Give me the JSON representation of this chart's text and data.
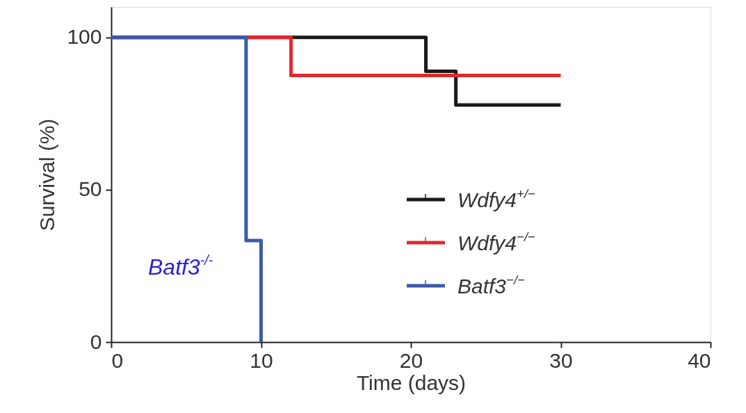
{
  "chart_data": {
    "type": "step",
    "xlabel": "Time (days)",
    "ylabel": "Survival (%)",
    "xlim": [
      0,
      40
    ],
    "xticks": [
      0,
      10,
      20,
      30,
      40
    ],
    "ylim": [
      0,
      110
    ],
    "yticks": [
      0,
      50,
      100
    ],
    "grid": false,
    "legend": "right",
    "marker": "none",
    "line_style": "solid",
    "series": [
      {
        "name": "Wdfy4$^{+/−}$",
        "color": "#1a1a1a",
        "x": [
          0,
          21,
          23,
          30
        ],
        "values": [
          100,
          88.9,
          77.8,
          77.8
        ]
      },
      {
        "name": "Wdfy4$^{−/−}$",
        "color": "#e0282e",
        "x": [
          0,
          12,
          30
        ],
        "values": [
          100,
          87.5,
          87.5
        ]
      },
      {
        "name": "Batf3$^{−/−}$",
        "color": "#3a5ba8",
        "x": [
          0,
          9,
          10
        ],
        "values": [
          100,
          33.3,
          0
        ]
      }
    ],
    "annotations": [
      "Batf3$^{-/-}$"
    ]
  }
}
